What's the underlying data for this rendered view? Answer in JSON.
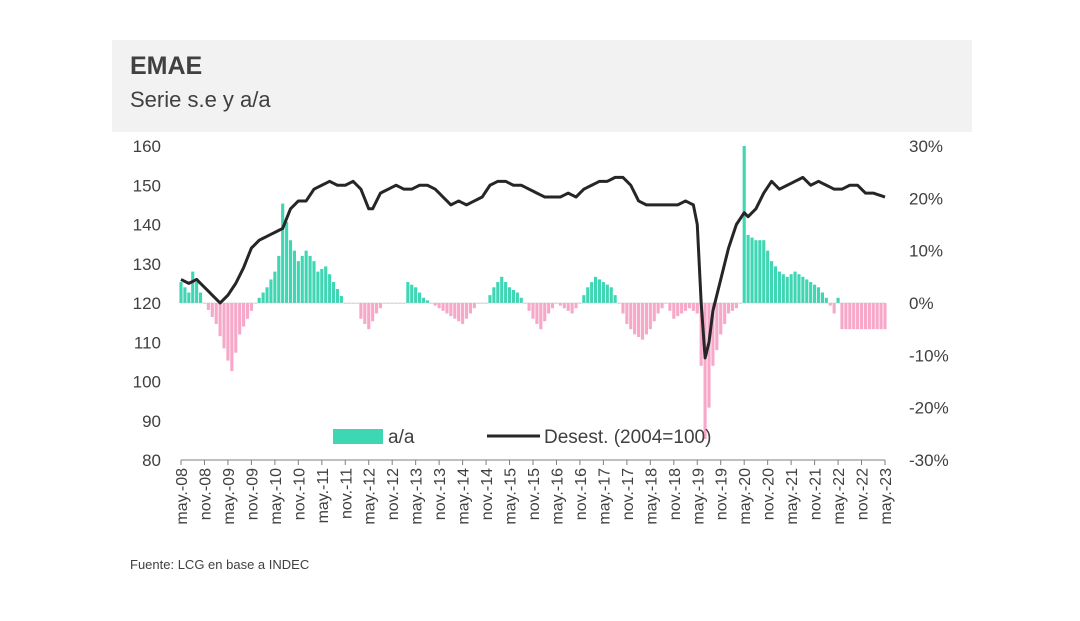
{
  "chart_data": {
    "type": "bar+line",
    "title": "EMAE",
    "subtitle": "Serie s.e y a/a",
    "source": "Fuente: LCG en base a INDEC",
    "left_axis": {
      "min": 80,
      "max": 160,
      "ticks": [
        "160",
        "150",
        "140",
        "130",
        "120",
        "110",
        "100",
        "90",
        "80"
      ]
    },
    "right_axis": {
      "min": -30,
      "max": 30,
      "ticks": [
        "30%",
        "20%",
        "10%",
        "0%",
        "-10%",
        "-20%",
        "-30%"
      ]
    },
    "x_tick_labels": [
      "may.-08",
      "nov.-08",
      "may.-09",
      "nov.-09",
      "may.-10",
      "nov.-10",
      "may.-11",
      "nov.-11",
      "may.-12",
      "nov.-12",
      "may.-13",
      "nov.-13",
      "may.-14",
      "nov.-14",
      "may.-15",
      "nov.-15",
      "may.-16",
      "nov.-16",
      "may.-17",
      "nov.-17",
      "may.-18",
      "nov.-18",
      "may.-19",
      "nov.-19",
      "may.-20",
      "nov.-20",
      "may.-21",
      "nov.-21",
      "may.-22",
      "nov.-22",
      "may.-23"
    ],
    "legend": {
      "bar_label": "a/a",
      "line_label": "Desest. (2004=100)"
    },
    "colors": {
      "bar_positive": "#3fd6b4",
      "bar_negative": "#f7a8c8",
      "line": "#262626",
      "axis": "#7f7f7f"
    },
    "bar_series_name": "a/a (%)",
    "bar_anchors_month_index": [
      [
        0,
        4
      ],
      [
        2,
        2
      ],
      [
        3,
        6
      ],
      [
        5,
        2
      ],
      [
        6,
        0
      ],
      [
        9,
        -4
      ],
      [
        12,
        -11
      ],
      [
        13,
        -13
      ],
      [
        15,
        -6
      ],
      [
        17,
        -3
      ],
      [
        19,
        0
      ],
      [
        22,
        3
      ],
      [
        24,
        6
      ],
      [
        25,
        9
      ],
      [
        26,
        19
      ],
      [
        28,
        12
      ],
      [
        30,
        8
      ],
      [
        32,
        10
      ],
      [
        34,
        8
      ],
      [
        35,
        6
      ],
      [
        37,
        7
      ],
      [
        39,
        4
      ],
      [
        42,
        0
      ],
      [
        45,
        0
      ],
      [
        46,
        -3
      ],
      [
        48,
        -5
      ],
      [
        50,
        -2
      ],
      [
        52,
        0
      ],
      [
        55,
        0
      ],
      [
        57,
        0
      ],
      [
        58,
        4
      ],
      [
        60,
        3
      ],
      [
        62,
        1
      ],
      [
        64,
        0
      ],
      [
        66,
        -1
      ],
      [
        68,
        -2
      ],
      [
        70,
        -3
      ],
      [
        72,
        -4
      ],
      [
        74,
        -2
      ],
      [
        76,
        0
      ],
      [
        78,
        0
      ],
      [
        80,
        3
      ],
      [
        82,
        5
      ],
      [
        84,
        3
      ],
      [
        86,
        2
      ],
      [
        88,
        0
      ],
      [
        90,
        -3
      ],
      [
        92,
        -5
      ],
      [
        94,
        -2
      ],
      [
        96,
        0
      ],
      [
        98,
        -1
      ],
      [
        100,
        -2
      ],
      [
        102,
        0
      ],
      [
        104,
        3
      ],
      [
        106,
        5
      ],
      [
        108,
        4
      ],
      [
        110,
        3
      ],
      [
        112,
        0
      ],
      [
        114,
        -4
      ],
      [
        116,
        -6
      ],
      [
        118,
        -7
      ],
      [
        120,
        -5
      ],
      [
        122,
        -2
      ],
      [
        124,
        0
      ],
      [
        126,
        -3
      ],
      [
        128,
        -2
      ],
      [
        130,
        -1
      ],
      [
        132,
        -2
      ],
      [
        133,
        -12
      ],
      [
        134,
        -26
      ],
      [
        135,
        -20
      ],
      [
        136,
        -12
      ],
      [
        138,
        -6
      ],
      [
        140,
        -2
      ],
      [
        142,
        -1
      ],
      [
        143,
        0
      ],
      [
        144,
        30
      ],
      [
        145,
        13
      ],
      [
        147,
        12
      ],
      [
        149,
        12
      ],
      [
        151,
        8
      ],
      [
        153,
        6
      ],
      [
        155,
        5
      ],
      [
        157,
        6
      ],
      [
        159,
        5
      ],
      [
        161,
        4
      ],
      [
        163,
        3
      ],
      [
        165,
        1
      ],
      [
        167,
        -2
      ],
      [
        168,
        1
      ],
      [
        169,
        -5
      ],
      [
        180,
        -5
      ]
    ],
    "line_series_name": "Desest. (2004=100)",
    "line_anchors_month_index": [
      [
        0,
        126
      ],
      [
        2,
        125
      ],
      [
        4,
        126
      ],
      [
        6,
        124
      ],
      [
        9,
        121
      ],
      [
        10,
        120
      ],
      [
        12,
        122
      ],
      [
        14,
        125
      ],
      [
        16,
        129
      ],
      [
        18,
        134
      ],
      [
        20,
        136
      ],
      [
        22,
        137
      ],
      [
        24,
        138
      ],
      [
        26,
        139
      ],
      [
        28,
        144
      ],
      [
        30,
        146
      ],
      [
        32,
        146
      ],
      [
        34,
        149
      ],
      [
        36,
        150
      ],
      [
        38,
        151
      ],
      [
        40,
        150
      ],
      [
        42,
        150
      ],
      [
        44,
        151
      ],
      [
        46,
        149
      ],
      [
        48,
        144
      ],
      [
        49,
        144
      ],
      [
        51,
        148
      ],
      [
        53,
        149
      ],
      [
        55,
        150
      ],
      [
        57,
        149
      ],
      [
        59,
        149
      ],
      [
        61,
        150
      ],
      [
        63,
        150
      ],
      [
        65,
        149
      ],
      [
        67,
        147
      ],
      [
        69,
        145
      ],
      [
        71,
        146
      ],
      [
        73,
        145
      ],
      [
        75,
        146
      ],
      [
        77,
        147
      ],
      [
        79,
        150
      ],
      [
        81,
        151
      ],
      [
        83,
        151
      ],
      [
        85,
        150
      ],
      [
        87,
        150
      ],
      [
        89,
        149
      ],
      [
        91,
        148
      ],
      [
        93,
        147
      ],
      [
        95,
        147
      ],
      [
        97,
        147
      ],
      [
        99,
        148
      ],
      [
        101,
        147
      ],
      [
        103,
        149
      ],
      [
        105,
        150
      ],
      [
        107,
        151
      ],
      [
        109,
        151
      ],
      [
        111,
        152
      ],
      [
        113,
        152
      ],
      [
        115,
        150
      ],
      [
        117,
        146
      ],
      [
        119,
        145
      ],
      [
        121,
        145
      ],
      [
        123,
        145
      ],
      [
        125,
        145
      ],
      [
        127,
        145
      ],
      [
        129,
        146
      ],
      [
        131,
        145
      ],
      [
        132,
        140
      ],
      [
        133,
        120
      ],
      [
        134,
        106
      ],
      [
        135,
        110
      ],
      [
        136,
        118
      ],
      [
        138,
        126
      ],
      [
        140,
        134
      ],
      [
        142,
        140
      ],
      [
        144,
        143
      ],
      [
        145,
        142
      ],
      [
        147,
        144
      ],
      [
        149,
        148
      ],
      [
        151,
        151
      ],
      [
        153,
        149
      ],
      [
        155,
        150
      ],
      [
        157,
        151
      ],
      [
        159,
        152
      ],
      [
        161,
        150
      ],
      [
        163,
        151
      ],
      [
        165,
        150
      ],
      [
        167,
        149
      ],
      [
        169,
        149
      ],
      [
        171,
        150
      ],
      [
        173,
        150
      ],
      [
        175,
        148
      ],
      [
        177,
        148
      ],
      [
        180,
        147
      ]
    ]
  }
}
